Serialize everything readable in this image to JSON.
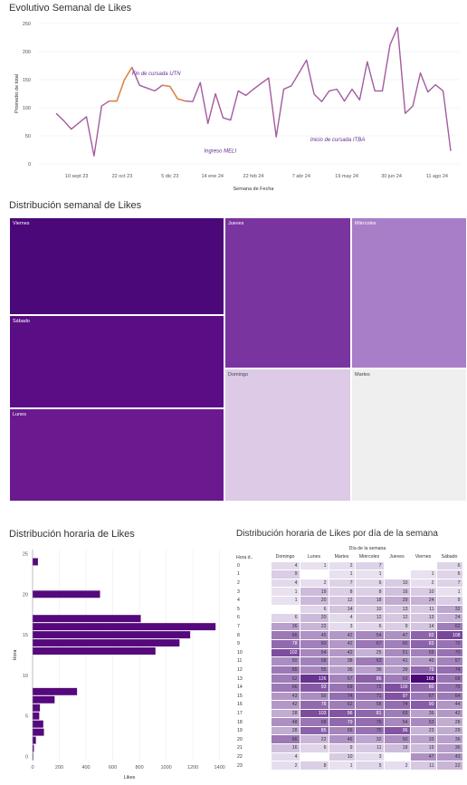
{
  "chart_data": [
    {
      "type": "line",
      "title": "Evolutivo Semanal de Likes",
      "xlabel": "Semana de Fecha",
      "ylabel": "Promedio de total",
      "ylim": [
        0,
        250
      ],
      "yticks": [
        0,
        50,
        100,
        150,
        200,
        250
      ],
      "xtick_labels": [
        "10 sept 23",
        "22 oct 23",
        "5 dic 23",
        "14 ene 24",
        "22 feb 24",
        "7 abr 24",
        "19 may 24",
        "30 jun 24",
        "11 ago 24"
      ],
      "xtick_index": [
        2.7,
        8.7,
        15.0,
        20.6,
        26.0,
        32.3,
        38.3,
        44.2,
        50.2
      ],
      "colors": {
        "line": "#a35b9f",
        "highlight": "#e08a37",
        "annotation": "#6a2c91"
      },
      "values": [
        90,
        77,
        62,
        73,
        84,
        14,
        103,
        112,
        112,
        150,
        172,
        140,
        135,
        130,
        140,
        138,
        116,
        112,
        111,
        145,
        72,
        125,
        82,
        78,
        130,
        122,
        133,
        143,
        153,
        48,
        133,
        139,
        162,
        185,
        124,
        111,
        130,
        133,
        112,
        133,
        114,
        182,
        130,
        130,
        212,
        243,
        90,
        103,
        162,
        128,
        141,
        130,
        23
      ],
      "highlight_segments": [
        [
          7,
          10
        ],
        [
          14,
          17
        ]
      ],
      "annotations": [
        {
          "text": "Fin de cursada UTN",
          "x": 10,
          "y": 158
        },
        {
          "text": "Ingreso MELI",
          "x": 19.5,
          "y": 20
        },
        {
          "text": "Inicio de cursada ITBA",
          "x": 33.5,
          "y": 40
        }
      ]
    },
    {
      "type": "treemap",
      "title": "Distribución semanal de Likes",
      "items": [
        {
          "label": "Viernes",
          "color": "#4a0878"
        },
        {
          "label": "Sábado",
          "color": "#5a0d84"
        },
        {
          "label": "Lunes",
          "color": "#6a1a8e"
        },
        {
          "label": "Jueves",
          "color": "#7a34a0"
        },
        {
          "label": "Miércoles",
          "color": "#a87ec8"
        },
        {
          "label": "Domingo",
          "color": "#dccae6"
        },
        {
          "label": "Martes",
          "color": "#efefef"
        }
      ]
    },
    {
      "type": "bar",
      "orientation": "horizontal",
      "title": "Distribución horaria de Likes",
      "xlabel": "Likes",
      "ylabel": "Hora",
      "xlim": [
        0,
        1450
      ],
      "xticks": [
        0,
        200,
        400,
        600,
        800,
        1000,
        1200,
        1400
      ],
      "ylim": [
        -0.5,
        25.5
      ],
      "yticks": [
        0,
        5,
        10,
        15,
        20,
        25
      ],
      "color": "#55097c",
      "categories": [
        "0",
        "1",
        "2",
        "3",
        "4",
        "5",
        "6",
        "7",
        "8",
        "9",
        "10",
        "11",
        "12",
        "13",
        "14",
        "15",
        "16",
        "17",
        "18",
        "19",
        "20",
        "21",
        "22",
        "23",
        "24",
        "25"
      ],
      "values": [
        5,
        10,
        25,
        85,
        80,
        50,
        55,
        165,
        333,
        0,
        0,
        0,
        0,
        920,
        1100,
        1180,
        1370,
        810,
        0,
        0,
        505,
        0,
        0,
        0,
        40,
        0
      ]
    },
    {
      "type": "heatmap",
      "title": "Distribución horaria de Likes por día de la semana",
      "column_group_label": "Día de la semana",
      "row_header": "Hora d..",
      "columns": [
        "Domingo",
        "Lunes",
        "Martes",
        "Miércoles",
        "Jueves",
        "Viernes",
        "Sábado"
      ],
      "rows": [
        "0",
        "1",
        "2",
        "3",
        "4",
        "5",
        "6",
        "7",
        "8",
        "9",
        "10",
        "11",
        "12",
        "13",
        "14",
        "15",
        "16",
        "17",
        "18",
        "19",
        "20",
        "21",
        "22",
        "23"
      ],
      "values": [
        [
          4,
          1,
          2,
          7,
          null,
          null,
          6
        ],
        [
          9,
          null,
          1,
          1,
          null,
          1,
          6
        ],
        [
          4,
          2,
          7,
          6,
          10,
          2,
          7
        ],
        [
          1,
          19,
          8,
          8,
          16,
          10,
          1
        ],
        [
          1,
          20,
          12,
          18,
          29,
          24,
          9
        ],
        [
          null,
          6,
          14,
          10,
          13,
          11,
          32
        ],
        [
          6,
          20,
          4,
          12,
          12,
          13,
          24
        ],
        [
          36,
          22,
          3,
          6,
          9,
          14,
          62
        ],
        [
          66,
          45,
          42,
          54,
          47,
          82,
          108
        ],
        [
          78,
          60,
          42,
          67,
          60,
          83,
          70
        ],
        [
          102,
          54,
          42,
          25,
          51,
          59,
          70
        ],
        [
          50,
          58,
          38,
          63,
          41,
          40,
          57
        ],
        [
          65,
          55,
          36,
          36,
          39,
          79,
          74
        ],
        [
          62,
          126,
          57,
          86,
          63,
          168,
          68
        ],
        [
          66,
          93,
          69,
          72,
          100,
          80,
          70
        ],
        [
          43,
          50,
          74,
          71,
          97,
          67,
          64
        ],
        [
          42,
          78,
          62,
          58,
          74,
          90,
          44
        ],
        [
          28,
          103,
          96,
          81,
          63,
          36,
          42
        ],
        [
          48,
          68,
          79,
          75,
          54,
          53,
          28
        ],
        [
          28,
          85,
          56,
          70,
          96,
          23,
          29
        ],
        [
          66,
          22,
          46,
          32,
          50,
          33,
          36
        ],
        [
          16,
          6,
          9,
          11,
          18,
          19,
          36
        ],
        [
          4,
          null,
          10,
          3,
          null,
          47,
          43
        ],
        [
          2,
          8,
          1,
          5,
          2,
          11,
          22
        ]
      ]
    }
  ]
}
